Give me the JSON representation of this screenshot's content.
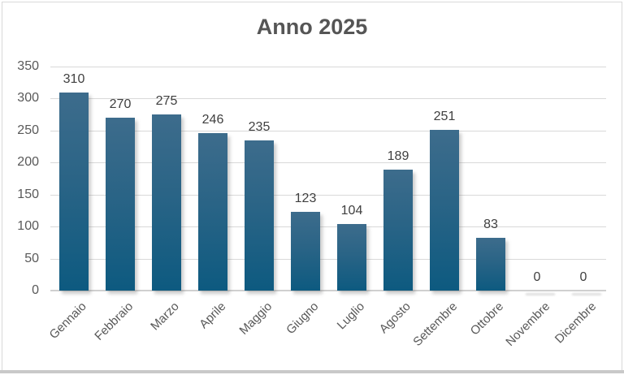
{
  "chart": {
    "title": "Anno 2025"
  },
  "chart_data": {
    "type": "bar",
    "title": "Anno 2025",
    "categories": [
      "Gennaio",
      "Febbraio",
      "Marzo",
      "Aprile",
      "Maggio",
      "Giugno",
      "Luglio",
      "Agosto",
      "Settembre",
      "Ottobre",
      "Novembre",
      "Dicembre"
    ],
    "values": [
      310,
      270,
      275,
      246,
      235,
      123,
      104,
      189,
      251,
      83,
      0,
      0
    ],
    "data_labels": [
      "310",
      "270",
      "275",
      "246",
      "235",
      "123",
      "104",
      "189",
      "251",
      "83",
      "0",
      "0"
    ],
    "xlabel": "",
    "ylabel": "",
    "ylim": [
      0,
      350
    ],
    "yticks": [
      0,
      50,
      100,
      150,
      200,
      250,
      300,
      350
    ],
    "grid": true,
    "legend": false,
    "x_tick_rotation_deg": 45,
    "colors": {
      "bar_gradient_top": "#3d6c8c",
      "bar_gradient_mid": "#2a6486",
      "bar_gradient_bottom": "#0d5a80",
      "gridline": "#d9d9d9",
      "axis_line": "#d0d0d0",
      "axis_text": "#595959",
      "data_label_text": "#3f3f3f",
      "title_text": "#555555",
      "background": "#ffffff",
      "chart_border": "#d9d9d9",
      "bottom_edge": "#c9c9c9"
    }
  }
}
